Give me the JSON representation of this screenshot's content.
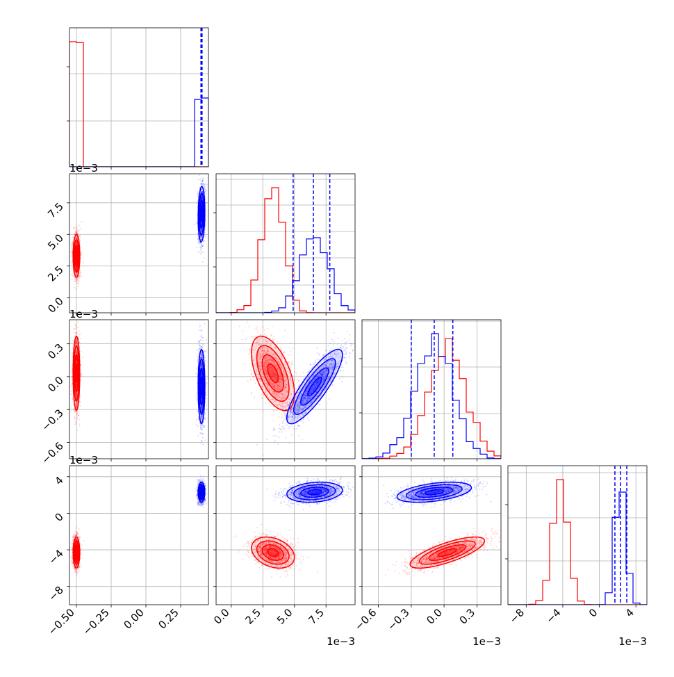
{
  "chart_data": {
    "type": "corner",
    "colors": {
      "series_a": "#ff0000",
      "series_b": "#0000ff",
      "grid": "#b0b0b0",
      "frame": "#000000"
    },
    "variables": [
      {
        "range": [
          -0.55,
          0.45
        ],
        "ticks": [
          -0.5,
          -0.25,
          0.0,
          0.25
        ],
        "tick_labels": [
          "−0.50",
          "−0.25",
          "0.00",
          "0.25"
        ],
        "offset": ""
      },
      {
        "range": [
          -0.0012,
          0.0098
        ],
        "ticks": [
          0.0,
          0.0025,
          0.005,
          0.0075
        ],
        "tick_labels": [
          "0.0",
          "2.5",
          "5.0",
          "7.5"
        ],
        "offset": "1e−3"
      },
      {
        "range": [
          -0.00075,
          0.00052
        ],
        "ticks": [
          -0.0006,
          -0.0003,
          0.0,
          0.0003
        ],
        "tick_labels": [
          "−0.6",
          "−0.3",
          "0.0",
          "0.3"
        ],
        "offset": "1e−3"
      },
      {
        "range": [
          -0.01,
          0.0052
        ],
        "ticks": [
          -0.008,
          -0.004,
          0.0,
          0.004
        ],
        "tick_labels": [
          "−8",
          "−4",
          "0",
          "4"
        ],
        "offset": "1e−3"
      }
    ],
    "series": [
      {
        "color": "#ff0000",
        "mean": [
          -0.5,
          0.0033,
          3e-05,
          -0.0043
        ],
        "sd": [
          0.012,
          0.00085,
          0.00017,
          0.00085
        ],
        "corr": [
          [
            1,
            0,
            0,
            0
          ],
          [
            0,
            1,
            -0.55,
            -0.3
          ],
          [
            0,
            -0.55,
            1,
            0.75
          ],
          [
            0,
            -0.3,
            0.75,
            1
          ]
        ],
        "hist_peak": [
          1.0,
          1.0,
          0.96,
          1.0
        ]
      },
      {
        "color": "#0000ff",
        "mean": [
          0.4,
          0.0066,
          -9e-05,
          0.0023
        ],
        "sd": [
          0.012,
          0.0011,
          0.00017,
          0.00055
        ],
        "corr": [
          [
            1,
            0.1,
            0,
            0
          ],
          [
            0.1,
            1,
            0.85,
            0.2
          ],
          [
            0,
            0.85,
            1,
            0.45
          ],
          [
            0,
            0.2,
            0.45,
            1
          ]
        ],
        "quantiles": [
          [
            0.396,
            0.4,
            0.404
          ],
          [
            0.0049,
            0.0065,
            0.0078
          ],
          [
            -0.0003,
            -9e-05,
            8e-05
          ],
          [
            0.0017,
            0.0023,
            0.003
          ]
        ],
        "hist_peak": [
          0.55,
          0.6,
          1.0,
          0.9
        ]
      }
    ]
  }
}
